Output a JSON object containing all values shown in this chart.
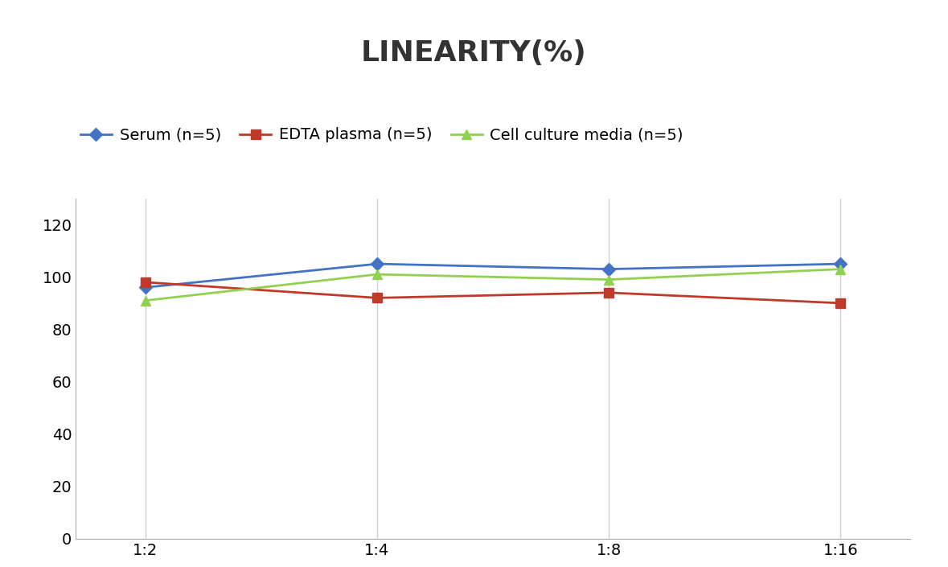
{
  "title": "LINEARITY(%)",
  "x_labels": [
    "1:2",
    "1:4",
    "1:8",
    "1:16"
  ],
  "x_positions": [
    0,
    1,
    2,
    3
  ],
  "series": [
    {
      "label": "Serum (n=5)",
      "values": [
        96,
        105,
        103,
        105
      ],
      "color": "#4472C4",
      "marker": "D",
      "linewidth": 2.0,
      "markersize": 8
    },
    {
      "label": "EDTA plasma (n=5)",
      "values": [
        98,
        92,
        94,
        90
      ],
      "color": "#C0392B",
      "marker": "s",
      "linewidth": 2.0,
      "markersize": 8
    },
    {
      "label": "Cell culture media (n=5)",
      "values": [
        91,
        101,
        99,
        103
      ],
      "color": "#92D050",
      "marker": "^",
      "linewidth": 2.0,
      "markersize": 8
    }
  ],
  "ylim": [
    0,
    130
  ],
  "yticks": [
    0,
    20,
    40,
    60,
    80,
    100,
    120
  ],
  "background_color": "#ffffff",
  "title_fontsize": 26,
  "title_fontweight": "bold",
  "legend_fontsize": 14,
  "tick_fontsize": 14,
  "grid_color": "#d0d0d0",
  "grid_linewidth": 1.0
}
